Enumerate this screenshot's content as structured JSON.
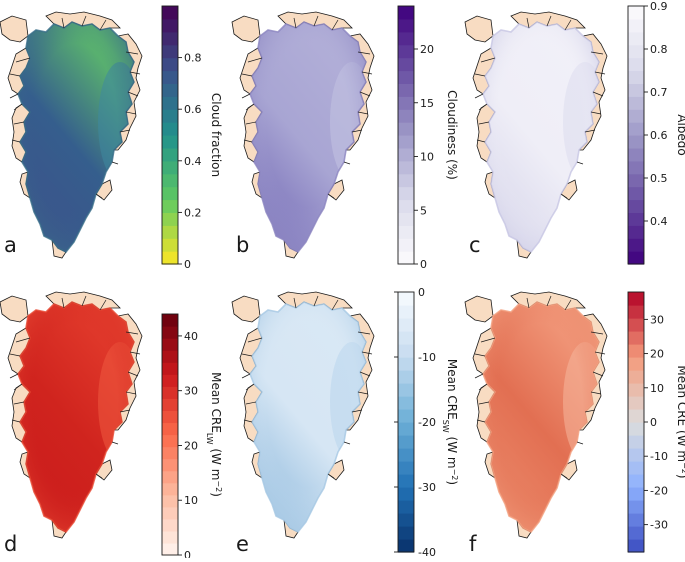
{
  "figure": {
    "panels": [
      {
        "id": "a",
        "label": "a",
        "colorbar": {
          "title": "Cloud fraction",
          "min": 0,
          "max": 1.0,
          "ticks": [
            0,
            0.2,
            0.4,
            0.6,
            0.8
          ],
          "tick_labels": [
            "0",
            "0.2",
            "0.4",
            "0.6",
            "0.8"
          ],
          "colormap": [
            "#fde725",
            "#5ec962",
            "#21918c",
            "#3b528b",
            "#440154"
          ],
          "step": 0.05,
          "ticks_left": false
        },
        "map": {
          "colormap": "viridis",
          "edge_color": "#3a6e8a",
          "center_color": "#355e8d",
          "south_color": "#3f4f8a",
          "north_color": "#5fbf6a",
          "east_color": "#3e88a0"
        }
      },
      {
        "id": "b",
        "label": "b",
        "colorbar": {
          "title": "Cloudiness (%)",
          "min": 0,
          "max": 24,
          "ticks": [
            0,
            5,
            10,
            15,
            20
          ],
          "tick_labels": [
            "0",
            "5",
            "10",
            "15",
            "20"
          ],
          "colormap": [
            "#fcfbfd",
            "#dadaeb",
            "#9e9ac8",
            "#6a51a3",
            "#3f007d"
          ],
          "step": 1.2,
          "ticks_left": false
        },
        "map": {
          "colormap": "purples",
          "edge_color": "#8c86c1",
          "center_color": "#a8a5d3",
          "south_color": "#6a5fb0",
          "north_color": "#b2afd8",
          "east_color": "#c3c2e2"
        }
      },
      {
        "id": "c",
        "label": "c",
        "colorbar": {
          "title": "Albedo",
          "min": 0.3,
          "max": 0.9,
          "ticks": [
            0.4,
            0.5,
            0.6,
            0.7,
            0.8,
            0.9
          ],
          "tick_labels": [
            "0.4",
            "0.5",
            "0.6",
            "0.7",
            "0.8",
            "0.9"
          ],
          "colormap": [
            "#3f007d",
            "#6a51a3",
            "#9e9ac8",
            "#dadaeb",
            "#fcfbfd"
          ],
          "step": 0.03,
          "ticks_left": false
        },
        "map": {
          "colormap": "purples_r",
          "edge_color": "#c7c6e3",
          "center_color": "#efeef7",
          "south_color": "#d2d1e8",
          "north_color": "#f1f0f8",
          "east_color": "#dddcee"
        }
      },
      {
        "id": "d",
        "label": "d",
        "colorbar": {
          "title": "Mean CRE",
          "title_sub": "LW",
          "title_unit": " (W m",
          "title_sup": "−2",
          "title_end": ")",
          "min": 0,
          "max": 44,
          "ticks": [
            0,
            10,
            20,
            30,
            40
          ],
          "tick_labels": [
            "0",
            "10",
            "20",
            "30",
            "40"
          ],
          "colormap": [
            "#fff5f0",
            "#fcbba1",
            "#fb6a4a",
            "#cb181d",
            "#67000d"
          ],
          "step": 2.2,
          "ticks_left": false
        },
        "map": {
          "colormap": "reds",
          "edge_color": "#e74a35",
          "center_color": "#d0241e",
          "south_color": "#c9191b",
          "north_color": "#e23b2c",
          "east_color": "#ef5a3f"
        }
      },
      {
        "id": "e",
        "label": "e",
        "colorbar": {
          "title": "Mean CRE",
          "title_sub": "SW",
          "title_unit": " (W m",
          "title_sup": "−2",
          "title_end": ")",
          "min": -40,
          "max": 0,
          "ticks": [
            -40,
            -30,
            -20,
            -10,
            0
          ],
          "tick_labels": [
            "-40",
            "-30",
            "-20",
            "-10",
            "0"
          ],
          "colormap": [
            "#08306b",
            "#2171b5",
            "#6baed6",
            "#c6dbef",
            "#f7fbff"
          ],
          "step": 2,
          "ticks_left": true
        },
        "map": {
          "colormap": "blues_r",
          "edge_color": "#a6c8e4",
          "center_color": "#d6e6f4",
          "south_color": "#7fb0d8",
          "north_color": "#d9e8f5",
          "east_color": "#b9d5ec"
        }
      },
      {
        "id": "f",
        "label": "f",
        "colorbar": {
          "title": "Mean CRE (W m",
          "title_sup": "−2",
          "title_end": ")",
          "min": -38,
          "max": 38,
          "ticks": [
            -30,
            -20,
            -10,
            0,
            10,
            20,
            30
          ],
          "tick_labels": [
            "-30",
            "-20",
            "-10",
            "0",
            "10",
            "20",
            "30"
          ],
          "colormap": [
            "#3b4cc0",
            "#8db0fe",
            "#dddddd",
            "#f49a7b",
            "#b40426"
          ],
          "step": 3.8,
          "ticks_left": false
        },
        "map": {
          "colormap": "coolwarm",
          "edge_color": "#f2a080",
          "center_color": "#e26f52",
          "south_color": "#ed8e6e",
          "north_color": "#f29a7c",
          "east_color": "#f6b69c"
        }
      }
    ],
    "colors": {
      "land": "#f8dcc2",
      "coast": "#1a1a1a"
    }
  }
}
